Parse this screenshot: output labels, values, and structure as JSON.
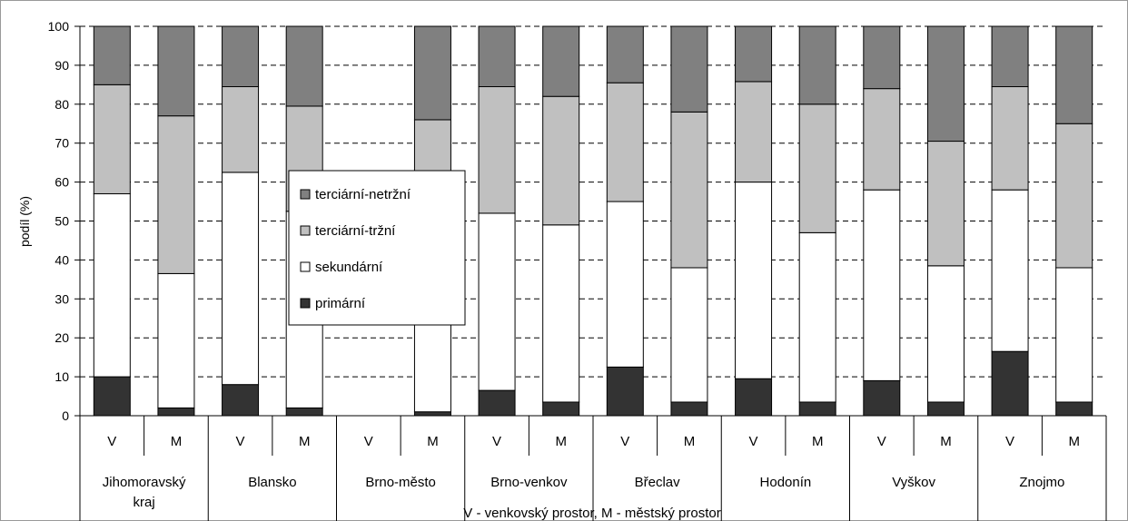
{
  "chart_data": {
    "type": "bar",
    "stacked": true,
    "ylabel": "podíl (%)",
    "ylim": [
      0,
      100
    ],
    "yticks": [
      0,
      10,
      20,
      30,
      40,
      50,
      60,
      70,
      80,
      90,
      100
    ],
    "grid": "dashed horizontal",
    "legend_placement": "center-left",
    "region_labels": [
      [
        "Jihomoravský",
        "kraj"
      ],
      [
        "Blansko"
      ],
      [
        "Brno-město"
      ],
      [
        "Brno-venkov"
      ],
      [
        "Břeclav"
      ],
      [
        "Hodonín"
      ],
      [
        "Vyškov"
      ],
      [
        "Znojmo"
      ]
    ],
    "categories": [
      "V",
      "M",
      "V",
      "M",
      "V",
      "M",
      "V",
      "M",
      "V",
      "M",
      "V",
      "M",
      "V",
      "M",
      "V",
      "M"
    ],
    "x_caption": "V - venkovský prostor, M - městský prostor",
    "series": [
      {
        "name": "primární",
        "color": "#333333",
        "values": [
          10,
          2,
          8,
          2,
          0,
          1,
          6.5,
          3.5,
          12.5,
          3.5,
          9.5,
          3.5,
          9,
          3.5,
          16.5,
          3.5
        ]
      },
      {
        "name": "sekundární",
        "color": "#ffffff",
        "values": [
          47,
          34.5,
          54.5,
          50.5,
          0,
          30.5,
          45.5,
          45.5,
          42.5,
          34.5,
          50.5,
          43.5,
          49,
          35,
          41.5,
          34.5
        ]
      },
      {
        "name": "terciární-tržní",
        "color": "#c0c0c0",
        "values": [
          28,
          40.5,
          22,
          27,
          0,
          44.5,
          32.5,
          33,
          30.5,
          40,
          25.8,
          33,
          26,
          32,
          26.5,
          37
        ]
      },
      {
        "name": "terciární-netržní",
        "color": "#808080",
        "values": [
          15,
          23,
          15.5,
          20.5,
          0,
          24,
          15.5,
          18,
          14.5,
          22,
          14.2,
          20,
          16,
          29.5,
          15.5,
          25
        ]
      }
    ]
  }
}
